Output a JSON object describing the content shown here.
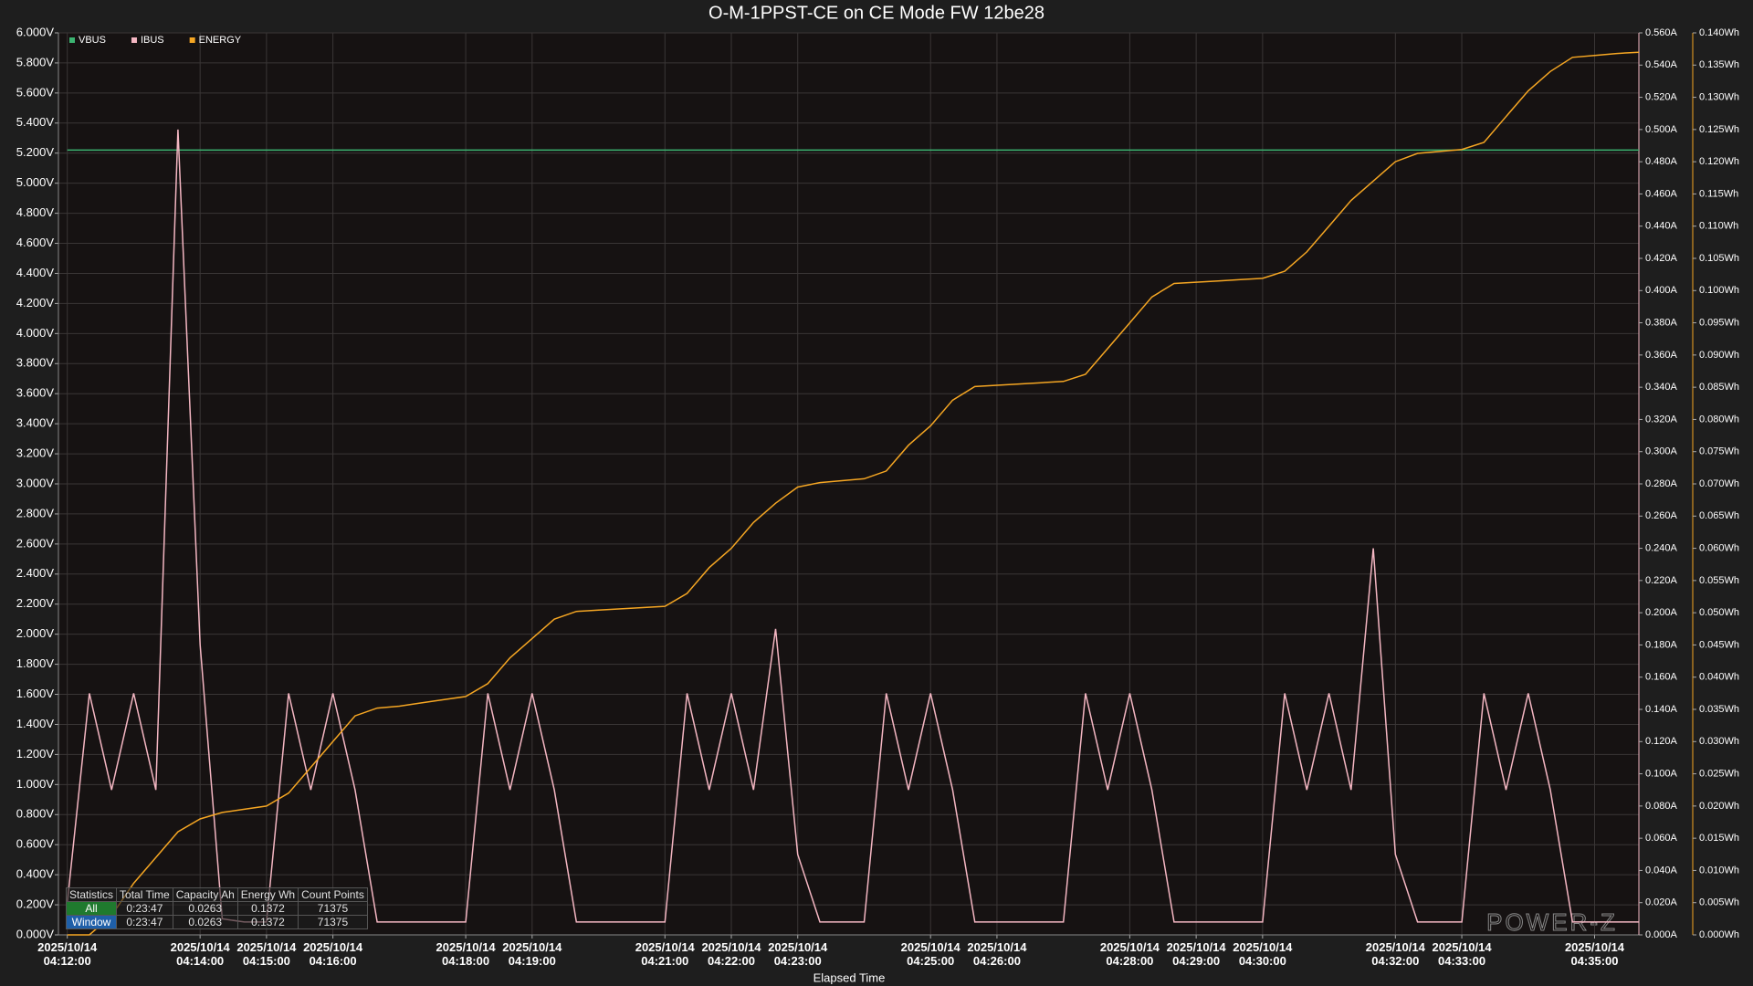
{
  "chart_data": {
    "type": "line",
    "title": "O-M-1PPST-CE on CE Mode FW 12be28",
    "x_label": "Elapsed Time",
    "watermark": "POWER-Z",
    "x": [
      "2025/10/14 04:12:00",
      "2025/10/14 04:12:20",
      "2025/10/14 04:12:40",
      "2025/10/14 04:13:00",
      "2025/10/14 04:13:20",
      "2025/10/14 04:13:40",
      "2025/10/14 04:14:00",
      "2025/10/14 04:14:20",
      "2025/10/14 04:14:40",
      "2025/10/14 04:15:00",
      "2025/10/14 04:15:20",
      "2025/10/14 04:15:40",
      "2025/10/14 04:16:00",
      "2025/10/14 04:16:20",
      "2025/10/14 04:16:40",
      "2025/10/14 04:17:00",
      "2025/10/14 04:17:20",
      "2025/10/14 04:17:40",
      "2025/10/14 04:18:00",
      "2025/10/14 04:18:20",
      "2025/10/14 04:18:40",
      "2025/10/14 04:19:00",
      "2025/10/14 04:19:20",
      "2025/10/14 04:19:40",
      "2025/10/14 04:20:00",
      "2025/10/14 04:20:20",
      "2025/10/14 04:20:40",
      "2025/10/14 04:21:00",
      "2025/10/14 04:21:20",
      "2025/10/14 04:21:40",
      "2025/10/14 04:22:00",
      "2025/10/14 04:22:20",
      "2025/10/14 04:22:40",
      "2025/10/14 04:23:00",
      "2025/10/14 04:23:20",
      "2025/10/14 04:23:40",
      "2025/10/14 04:24:00",
      "2025/10/14 04:24:20",
      "2025/10/14 04:24:40",
      "2025/10/14 04:25:00",
      "2025/10/14 04:25:20",
      "2025/10/14 04:25:40",
      "2025/10/14 04:26:00",
      "2025/10/14 04:26:20",
      "2025/10/14 04:26:40",
      "2025/10/14 04:27:00",
      "2025/10/14 04:27:20",
      "2025/10/14 04:27:40",
      "2025/10/14 04:28:00",
      "2025/10/14 04:28:20",
      "2025/10/14 04:28:40",
      "2025/10/14 04:29:00",
      "2025/10/14 04:29:20",
      "2025/10/14 04:29:40",
      "2025/10/14 04:30:00",
      "2025/10/14 04:30:20",
      "2025/10/14 04:30:40",
      "2025/10/14 04:31:00",
      "2025/10/14 04:31:20",
      "2025/10/14 04:31:40",
      "2025/10/14 04:32:00",
      "2025/10/14 04:32:20",
      "2025/10/14 04:32:40",
      "2025/10/14 04:33:00",
      "2025/10/14 04:33:20",
      "2025/10/14 04:33:40",
      "2025/10/14 04:34:00",
      "2025/10/14 04:34:20",
      "2025/10/14 04:34:40",
      "2025/10/14 04:35:00",
      "2025/10/14 04:35:20",
      "2025/10/14 04:35:40"
    ],
    "series": [
      {
        "name": "VBUS",
        "color": "#3cb371",
        "axis": "y",
        "values": [
          5.22,
          5.22,
          5.22,
          5.22,
          5.22,
          5.22,
          5.22,
          5.22,
          5.22,
          5.22,
          5.22,
          5.22,
          5.22,
          5.22,
          5.22,
          5.22,
          5.22,
          5.22,
          5.22,
          5.22,
          5.22,
          5.22,
          5.22,
          5.22,
          5.22,
          5.22,
          5.22,
          5.22,
          5.22,
          5.22,
          5.22,
          5.22,
          5.22,
          5.22,
          5.22,
          5.22,
          5.22,
          5.22,
          5.22,
          5.22,
          5.22,
          5.22,
          5.22,
          5.22,
          5.22,
          5.22,
          5.22,
          5.22,
          5.22,
          5.22,
          5.22,
          5.22,
          5.22,
          5.22,
          5.22,
          5.22,
          5.22,
          5.22,
          5.22,
          5.22,
          5.22,
          5.22,
          5.22,
          5.22,
          5.22,
          5.22,
          5.22,
          5.22,
          5.22,
          5.22,
          5.22,
          5.22
        ]
      },
      {
        "name": "IBUS",
        "color": "#f4b6c2",
        "axis": "y2",
        "values": [
          0.02,
          0.15,
          0.09,
          0.15,
          0.09,
          0.5,
          0.18,
          0.01,
          0.008,
          0.008,
          0.15,
          0.09,
          0.15,
          0.09,
          0.008,
          0.008,
          0.008,
          0.008,
          0.008,
          0.15,
          0.09,
          0.15,
          0.09,
          0.008,
          0.008,
          0.008,
          0.008,
          0.008,
          0.15,
          0.09,
          0.15,
          0.09,
          0.19,
          0.05,
          0.008,
          0.008,
          0.008,
          0.15,
          0.09,
          0.15,
          0.09,
          0.008,
          0.008,
          0.008,
          0.008,
          0.008,
          0.15,
          0.09,
          0.15,
          0.09,
          0.008,
          0.008,
          0.008,
          0.008,
          0.008,
          0.15,
          0.09,
          0.15,
          0.09,
          0.24,
          0.05,
          0.008,
          0.008,
          0.008,
          0.15,
          0.09,
          0.15,
          0.09,
          0.008,
          0.008,
          0.008,
          0.008
        ]
      },
      {
        "name": "ENERGY",
        "color": "#f5a623",
        "axis": "y3",
        "values": [
          0,
          0,
          0.003,
          0.008,
          0.012,
          0.016,
          0.018,
          0.019,
          0.0195,
          0.02,
          0.022,
          0.026,
          0.03,
          0.034,
          0.0352,
          0.0355,
          0.036,
          0.0365,
          0.037,
          0.039,
          0.043,
          0.046,
          0.049,
          0.0502,
          0.0504,
          0.0506,
          0.0508,
          0.051,
          0.053,
          0.057,
          0.06,
          0.064,
          0.067,
          0.0695,
          0.0702,
          0.0705,
          0.0708,
          0.072,
          0.076,
          0.079,
          0.083,
          0.0851,
          0.0853,
          0.0855,
          0.0857,
          0.0859,
          0.087,
          0.091,
          0.095,
          0.099,
          0.1011,
          0.1013,
          0.1015,
          0.1017,
          0.1019,
          0.103,
          0.106,
          0.11,
          0.114,
          0.117,
          0.12,
          0.1213,
          0.1216,
          0.1219,
          0.123,
          0.127,
          0.131,
          0.134,
          0.1362,
          0.1365,
          0.1368,
          0.137
        ]
      }
    ],
    "xlim": [
      "2025/10/14 04:11:52",
      "2025/10/14 04:35:40"
    ],
    "xticks": [
      "2025/10/14 04:12:00",
      "2025/10/14 04:14:00",
      "2025/10/14 04:15:00",
      "2025/10/14 04:16:00",
      "2025/10/14 04:18:00",
      "2025/10/14 04:19:00",
      "2025/10/14 04:21:00",
      "2025/10/14 04:22:00",
      "2025/10/14 04:23:00",
      "2025/10/14 04:25:00",
      "2025/10/14 04:26:00",
      "2025/10/14 04:28:00",
      "2025/10/14 04:29:00",
      "2025/10/14 04:30:00",
      "2025/10/14 04:32:00",
      "2025/10/14 04:33:00",
      "2025/10/14 04:35:00"
    ],
    "ylim": [
      0,
      6
    ],
    "yticks": [
      {
        "value": 0,
        "label": "0.000V"
      },
      {
        "value": 0.2,
        "label": "0.200V"
      },
      {
        "value": 0.4,
        "label": "0.400V"
      },
      {
        "value": 0.6,
        "label": "0.600V"
      },
      {
        "value": 0.8,
        "label": "0.800V"
      },
      {
        "value": 1,
        "label": "1.000V"
      },
      {
        "value": 1.2,
        "label": "1.200V"
      },
      {
        "value": 1.4,
        "label": "1.400V"
      },
      {
        "value": 1.6,
        "label": "1.600V"
      },
      {
        "value": 1.8,
        "label": "1.800V"
      },
      {
        "value": 2,
        "label": "2.000V"
      },
      {
        "value": 2.2,
        "label": "2.200V"
      },
      {
        "value": 2.4,
        "label": "2.400V"
      },
      {
        "value": 2.6,
        "label": "2.600V"
      },
      {
        "value": 2.8,
        "label": "2.800V"
      },
      {
        "value": 3,
        "label": "3.000V"
      },
      {
        "value": 3.2,
        "label": "3.200V"
      },
      {
        "value": 3.4,
        "label": "3.400V"
      },
      {
        "value": 3.6,
        "label": "3.600V"
      },
      {
        "value": 3.8,
        "label": "3.800V"
      },
      {
        "value": 4,
        "label": "4.000V"
      },
      {
        "value": 4.2,
        "label": "4.200V"
      },
      {
        "value": 4.4,
        "label": "4.400V"
      },
      {
        "value": 4.6,
        "label": "4.600V"
      },
      {
        "value": 4.8,
        "label": "4.800V"
      },
      {
        "value": 5,
        "label": "5.000V"
      },
      {
        "value": 5.2,
        "label": "5.200V"
      },
      {
        "value": 5.4,
        "label": "5.400V"
      },
      {
        "value": 5.6,
        "label": "5.600V"
      },
      {
        "value": 5.8,
        "label": "5.800V"
      },
      {
        "value": 6,
        "label": "6.000V"
      }
    ],
    "y2lim": [
      0,
      0.56
    ],
    "y2ticks": [
      {
        "value": 0,
        "label": "0.000A"
      },
      {
        "value": 0.02,
        "label": "0.020A"
      },
      {
        "value": 0.04,
        "label": "0.040A"
      },
      {
        "value": 0.06,
        "label": "0.060A"
      },
      {
        "value": 0.08,
        "label": "0.080A"
      },
      {
        "value": 0.1,
        "label": "0.100A"
      },
      {
        "value": 0.12,
        "label": "0.120A"
      },
      {
        "value": 0.14,
        "label": "0.140A"
      },
      {
        "value": 0.16,
        "label": "0.160A"
      },
      {
        "value": 0.18,
        "label": "0.180A"
      },
      {
        "value": 0.2,
        "label": "0.200A"
      },
      {
        "value": 0.22,
        "label": "0.220A"
      },
      {
        "value": 0.24,
        "label": "0.240A"
      },
      {
        "value": 0.26,
        "label": "0.260A"
      },
      {
        "value": 0.28,
        "label": "0.280A"
      },
      {
        "value": 0.3,
        "label": "0.300A"
      },
      {
        "value": 0.32,
        "label": "0.320A"
      },
      {
        "value": 0.34,
        "label": "0.340A"
      },
      {
        "value": 0.36,
        "label": "0.360A"
      },
      {
        "value": 0.38,
        "label": "0.380A"
      },
      {
        "value": 0.4,
        "label": "0.400A"
      },
      {
        "value": 0.42,
        "label": "0.420A"
      },
      {
        "value": 0.44,
        "label": "0.440A"
      },
      {
        "value": 0.46,
        "label": "0.460A"
      },
      {
        "value": 0.48,
        "label": "0.480A"
      },
      {
        "value": 0.5,
        "label": "0.500A"
      },
      {
        "value": 0.52,
        "label": "0.520A"
      },
      {
        "value": 0.54,
        "label": "0.540A"
      },
      {
        "value": 0.56,
        "label": "0.560A"
      }
    ],
    "y3lim": [
      0,
      0.14
    ],
    "y3ticks": [
      {
        "value": 0,
        "label": "0.000Wh"
      },
      {
        "value": 0.005,
        "label": "0.005Wh"
      },
      {
        "value": 0.01,
        "label": "0.010Wh"
      },
      {
        "value": 0.015,
        "label": "0.015Wh"
      },
      {
        "value": 0.02,
        "label": "0.020Wh"
      },
      {
        "value": 0.025,
        "label": "0.025Wh"
      },
      {
        "value": 0.03,
        "label": "0.030Wh"
      },
      {
        "value": 0.035,
        "label": "0.035Wh"
      },
      {
        "value": 0.04,
        "label": "0.040Wh"
      },
      {
        "value": 0.045,
        "label": "0.045Wh"
      },
      {
        "value": 0.05,
        "label": "0.050Wh"
      },
      {
        "value": 0.055,
        "label": "0.055Wh"
      },
      {
        "value": 0.06,
        "label": "0.060Wh"
      },
      {
        "value": 0.065,
        "label": "0.065Wh"
      },
      {
        "value": 0.07,
        "label": "0.070Wh"
      },
      {
        "value": 0.075,
        "label": "0.075Wh"
      },
      {
        "value": 0.08,
        "label": "0.080Wh"
      },
      {
        "value": 0.085,
        "label": "0.085Wh"
      },
      {
        "value": 0.09,
        "label": "0.090Wh"
      },
      {
        "value": 0.095,
        "label": "0.095Wh"
      },
      {
        "value": 0.1,
        "label": "0.100Wh"
      },
      {
        "value": 0.105,
        "label": "0.105Wh"
      },
      {
        "value": 0.11,
        "label": "0.110Wh"
      },
      {
        "value": 0.115,
        "label": "0.115Wh"
      },
      {
        "value": 0.12,
        "label": "0.120Wh"
      },
      {
        "value": 0.125,
        "label": "0.125Wh"
      },
      {
        "value": 0.13,
        "label": "0.130Wh"
      },
      {
        "value": 0.135,
        "label": "0.135Wh"
      },
      {
        "value": 0.14,
        "label": "0.140Wh"
      }
    ],
    "grid": true,
    "legend": "top-left",
    "statistics": {
      "columns": [
        "Statistics",
        "Total Time",
        "Capacity Ah",
        "Energy Wh",
        "Count Points"
      ],
      "rows": [
        [
          "All",
          "0:23:47",
          "0.0263",
          "0.1372",
          "71375"
        ],
        [
          "Window",
          "0:23:47",
          "0.0263",
          "0.1372",
          "71375"
        ]
      ]
    }
  }
}
